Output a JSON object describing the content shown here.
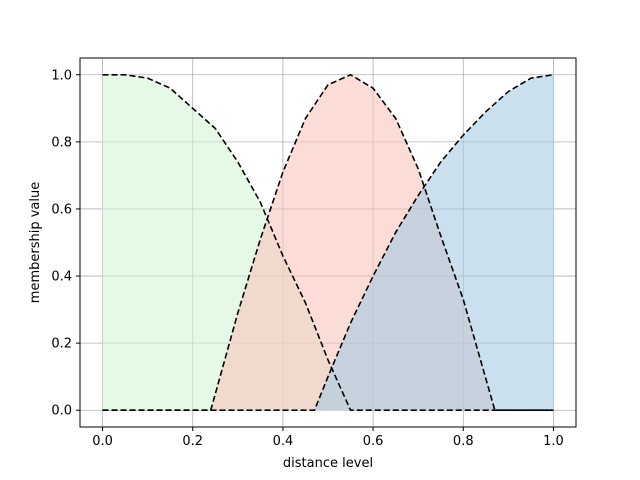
{
  "chart_data": {
    "type": "area",
    "xlabel": "distance level",
    "ylabel": "membership value",
    "xlim": [
      -0.05,
      1.05
    ],
    "ylim": [
      -0.05,
      1.05
    ],
    "grid": true,
    "xticks": [
      "0.0",
      "0.2",
      "0.4",
      "0.6",
      "0.8",
      "1.0"
    ],
    "yticks": [
      "0.0",
      "0.2",
      "0.4",
      "0.6",
      "0.8",
      "1.0"
    ],
    "series": [
      {
        "fill_color": "#d6f5d6",
        "line_style": "dashed",
        "line_color": "#000000",
        "x": [
          0.0,
          0.05,
          0.1,
          0.15,
          0.2,
          0.25,
          0.3,
          0.35,
          0.4,
          0.45,
          0.5,
          0.55,
          1.0
        ],
        "y": [
          1.0,
          1.0,
          0.99,
          0.96,
          0.9,
          0.84,
          0.74,
          0.62,
          0.46,
          0.32,
          0.15,
          0.0,
          0.0
        ]
      },
      {
        "fill_color": "#f9c5bd",
        "line_style": "dashed",
        "line_color": "#000000",
        "x": [
          0.0,
          0.24,
          0.3,
          0.35,
          0.4,
          0.45,
          0.5,
          0.55,
          0.6,
          0.65,
          0.7,
          0.75,
          0.8,
          0.87,
          1.0
        ],
        "y": [
          0.0,
          0.0,
          0.29,
          0.51,
          0.71,
          0.87,
          0.97,
          1.0,
          0.96,
          0.87,
          0.72,
          0.52,
          0.33,
          0.0,
          0.0
        ]
      },
      {
        "fill_color": "#a7cbe3",
        "line_style": "dashed",
        "line_color": "#000000",
        "x": [
          0.0,
          0.47,
          0.5,
          0.55,
          0.6,
          0.65,
          0.7,
          0.75,
          0.8,
          0.85,
          0.9,
          0.95,
          1.0
        ],
        "y": [
          0.0,
          0.0,
          0.1,
          0.26,
          0.4,
          0.53,
          0.64,
          0.74,
          0.82,
          0.89,
          0.95,
          0.99,
          1.0
        ]
      }
    ]
  }
}
